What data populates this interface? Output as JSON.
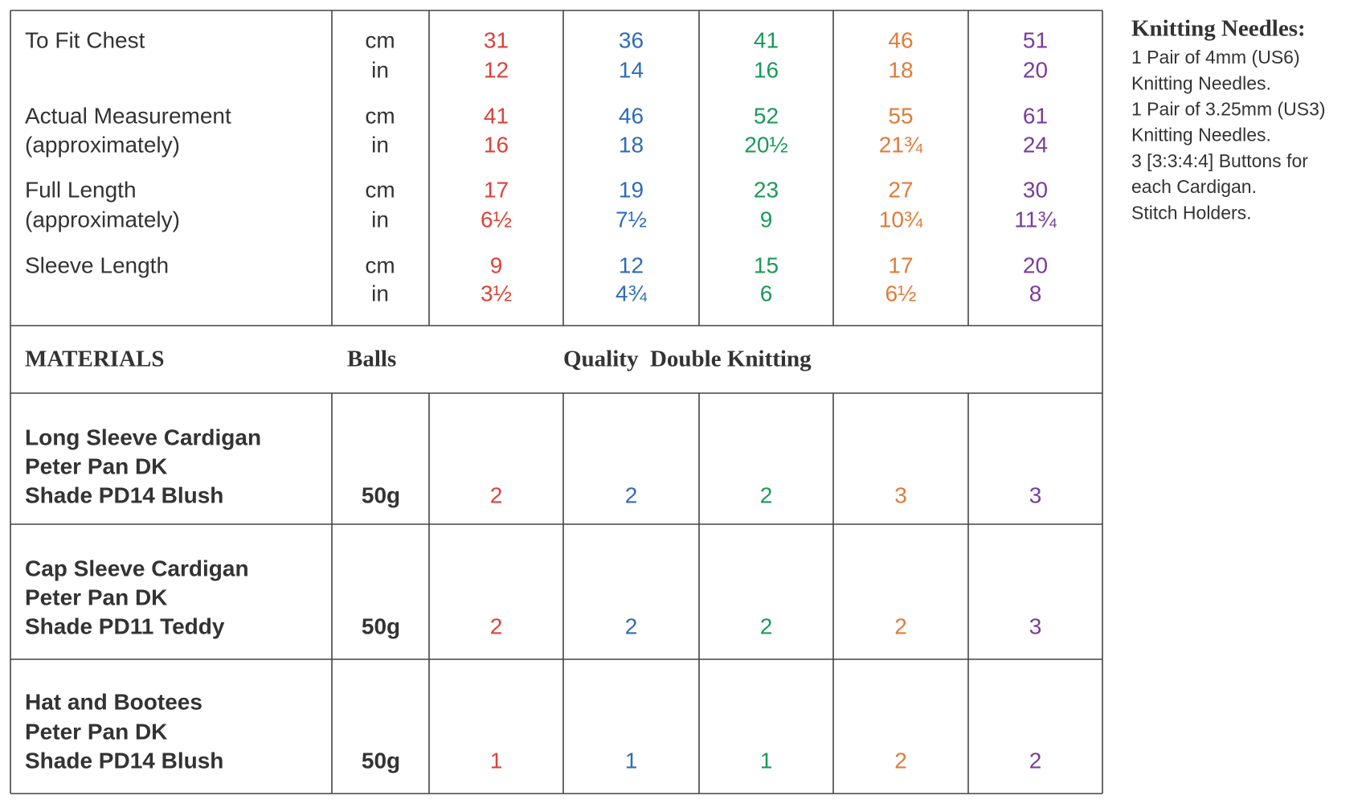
{
  "measurements": {
    "rows": [
      {
        "label": [
          "To Fit Chest"
        ],
        "units": [
          "cm",
          "in"
        ],
        "values": [
          [
            31,
            36,
            41,
            46,
            51
          ],
          [
            12,
            14,
            16,
            18,
            20
          ]
        ]
      },
      {
        "label": [
          "Actual Measurement",
          "(approximately)"
        ],
        "units": [
          "cm",
          "in"
        ],
        "values": [
          [
            41,
            46,
            52,
            55,
            61
          ],
          [
            16,
            18,
            "20½",
            "21¾",
            24
          ]
        ]
      },
      {
        "label": [
          "Full Length",
          "(approximately)"
        ],
        "units": [
          "cm",
          "in"
        ],
        "values": [
          [
            17,
            19,
            23,
            27,
            30
          ],
          [
            "6½",
            "7½",
            9,
            "10¾",
            "11¾"
          ]
        ]
      },
      {
        "label": [
          "Sleeve Length"
        ],
        "units": [
          "cm",
          "in"
        ],
        "values": [
          [
            9,
            12,
            15,
            17,
            20
          ],
          [
            "3½",
            "4¾",
            6,
            "6½",
            8
          ]
        ]
      }
    ]
  },
  "materials": {
    "header": {
      "label": "MATERIALS",
      "balls": "Balls",
      "quality": "Quality  Double Knitting"
    },
    "items": [
      {
        "lines": [
          "Long Sleeve Cardigan",
          "Peter Pan DK",
          "Shade PD14 Blush"
        ],
        "weight": "50g",
        "balls": [
          2,
          2,
          2,
          3,
          3
        ]
      },
      {
        "lines": [
          "Cap Sleeve Cardigan",
          "Peter Pan DK",
          "Shade PD11 Teddy"
        ],
        "weight": "50g",
        "balls": [
          2,
          2,
          2,
          2,
          3
        ]
      },
      {
        "lines": [
          "Hat and Bootees",
          "Peter Pan DK",
          "Shade PD14 Blush"
        ],
        "weight": "50g",
        "balls": [
          1,
          1,
          1,
          2,
          2
        ]
      }
    ]
  },
  "size_colors": [
    "#d9443a",
    "#2f6db5",
    "#1a9a5a",
    "#e07b39",
    "#7a3d9a"
  ],
  "needles": {
    "title": "Knitting Needles:",
    "lines": [
      "1 Pair of 4mm (US6)",
      "Knitting Needles.",
      "1 Pair of 3.25mm (US3)",
      "Knitting Needles.",
      "3 [3:3:4:4] Buttons for",
      "each Cardigan.",
      "Stitch Holders."
    ]
  }
}
